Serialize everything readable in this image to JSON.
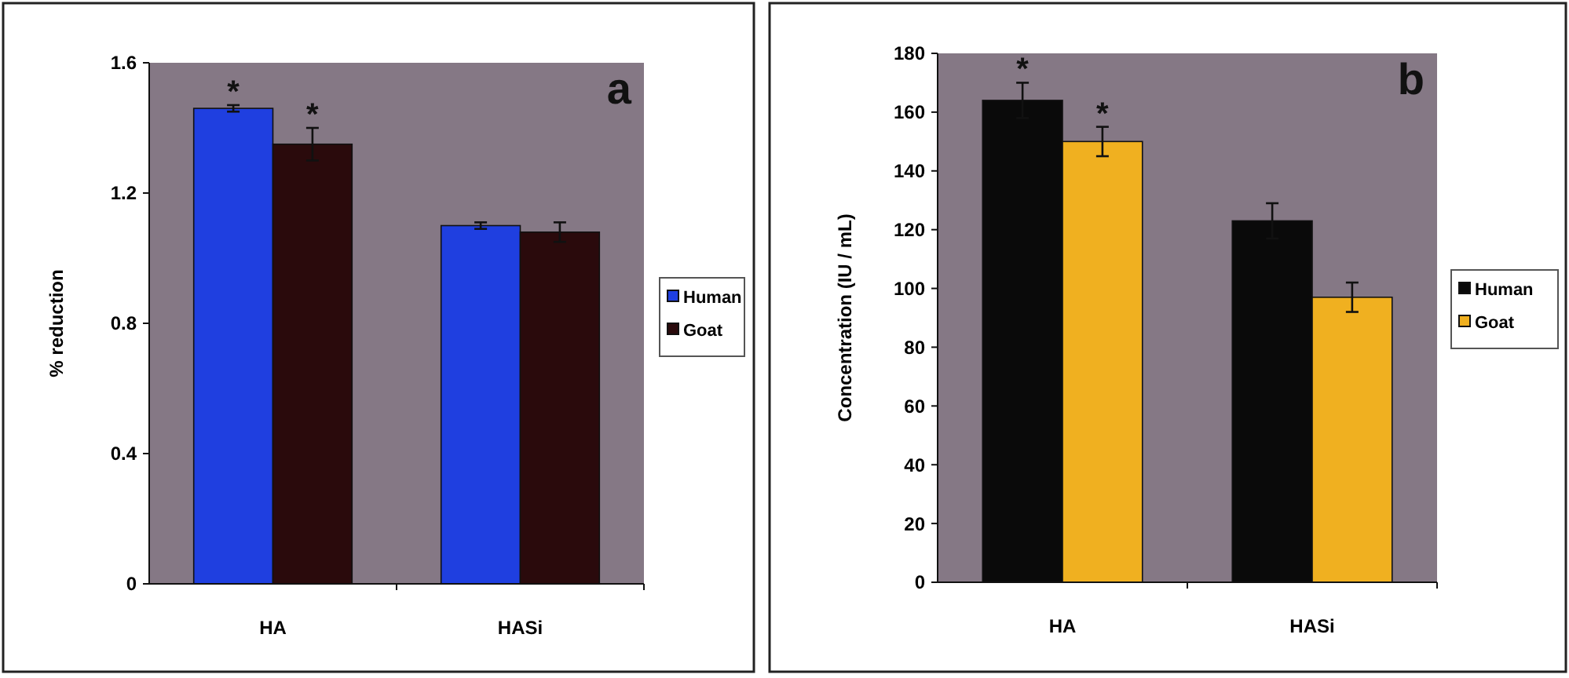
{
  "chart_data": [
    {
      "type": "bar",
      "title": "a",
      "ylabel": "% reduction",
      "categories": [
        "HA",
        "HASi"
      ],
      "ylim": [
        0,
        1.6
      ],
      "yticks": [
        0,
        0.4,
        0.8,
        1.2,
        1.6
      ],
      "grid": false,
      "legend": "right",
      "series": [
        {
          "name": "Human",
          "color": "#1f3fe0",
          "values": [
            1.46,
            1.1
          ],
          "errors": [
            0.01,
            0.01
          ]
        },
        {
          "name": "Goat",
          "color": "#2a0a0c",
          "values": [
            1.35,
            1.08
          ],
          "errors": [
            0.05,
            0.03
          ]
        }
      ],
      "annotations": [
        "*",
        "*"
      ]
    },
    {
      "type": "bar",
      "title": "b",
      "ylabel": "Concentration (IU / mL)",
      "categories": [
        "HA",
        "HASi"
      ],
      "ylim": [
        0,
        180
      ],
      "yticks": [
        0,
        20,
        40,
        60,
        80,
        100,
        120,
        140,
        160,
        180
      ],
      "grid": false,
      "legend": "right",
      "series": [
        {
          "name": "Human",
          "color": "#0a0a0a",
          "values": [
            164,
            123
          ],
          "errors": [
            6,
            6
          ]
        },
        {
          "name": "Goat",
          "color": "#f0b020",
          "values": [
            150,
            97
          ],
          "errors": [
            5,
            5
          ]
        }
      ],
      "annotations": [
        "*",
        "*"
      ]
    }
  ]
}
